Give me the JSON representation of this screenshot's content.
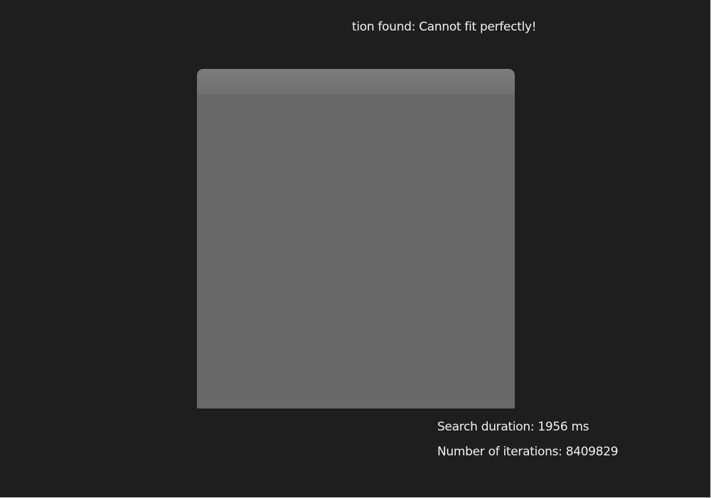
{
  "colors": {
    "background": "#1e1e1e",
    "text": "#f2f2f2",
    "shape_top": "#777777",
    "shape_body": "#686868"
  },
  "status": {
    "message": "tion found: Cannot fit perfectly!"
  },
  "stats": {
    "duration_label": "Search duration: 1956 ms",
    "iterations_label": "Number of iterations: 8409829"
  }
}
